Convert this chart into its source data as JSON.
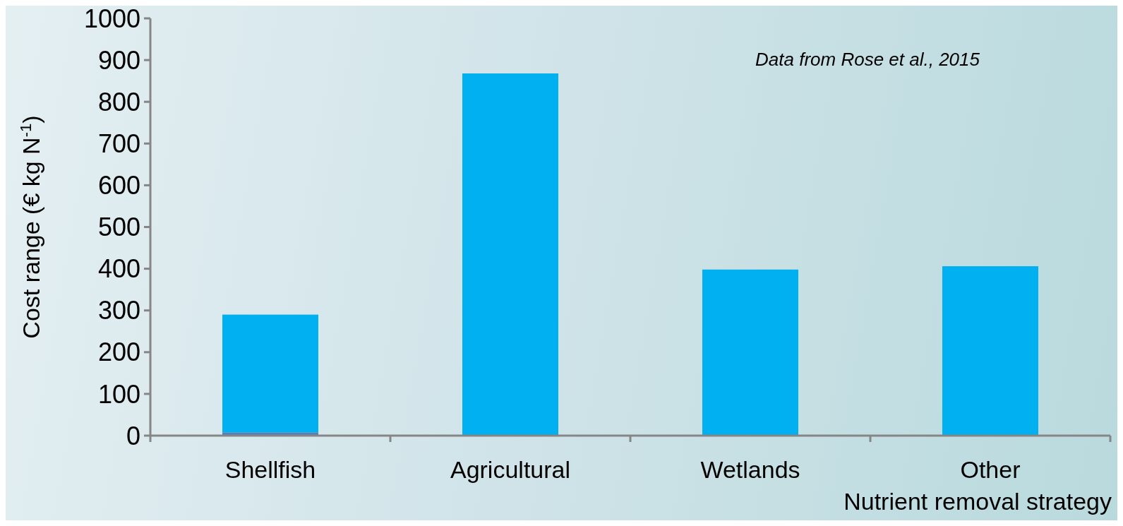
{
  "chart_data": {
    "type": "bar",
    "stacked": true,
    "categories": [
      "Shellfish",
      "Agricultural",
      "Wetlands",
      "Other"
    ],
    "series": [
      {
        "color": "#4f81bd",
        "values": [
          8,
          null,
          null,
          null
        ]
      },
      {
        "color": "#00b0f0",
        "values": [
          282,
          868,
          398,
          406
        ]
      }
    ],
    "ylim": [
      0,
      1000
    ],
    "yticks": [
      0,
      100,
      200,
      300,
      400,
      500,
      600,
      700,
      800,
      900,
      1000
    ],
    "ylabel": "Cost range (€ kg N$^{-1}$)",
    "xlabel": "Nutrient removal strategy",
    "annotations": [
      "Data from Rose et al., 2015"
    ],
    "grid": false
  }
}
